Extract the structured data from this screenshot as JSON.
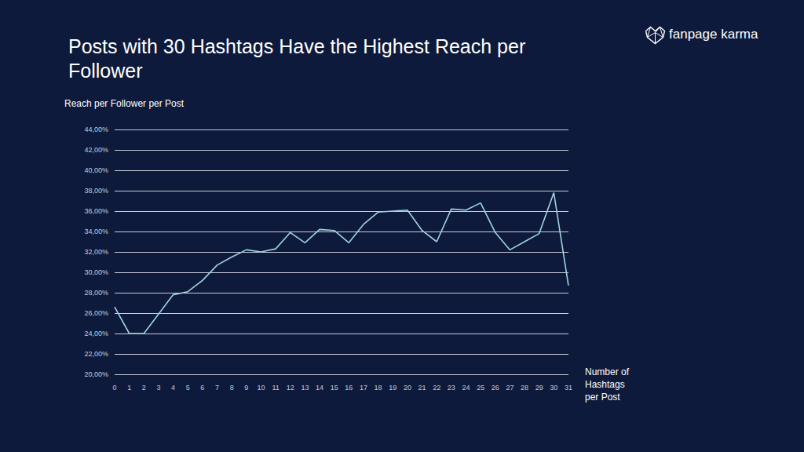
{
  "chart_data": {
    "type": "line",
    "title": "Posts with 30 Hashtags Have the Highest Reach per Follower",
    "brand": "fanpage karma",
    "y_label": "Reach per Follower per Post",
    "x_label": "Number of Hashtags per Post",
    "categories": [
      "0",
      "1",
      "2",
      "3",
      "4",
      "5",
      "6",
      "7",
      "8",
      "9",
      "10",
      "11",
      "12",
      "13",
      "14",
      "15",
      "16",
      "17",
      "18",
      "19",
      "20",
      "21",
      "22",
      "23",
      "24",
      "25",
      "26",
      "27",
      "28",
      "29",
      "30",
      "31"
    ],
    "values": [
      26.6,
      24.0,
      24.0,
      25.9,
      27.8,
      28.1,
      29.2,
      30.7,
      31.5,
      32.2,
      32.0,
      32.3,
      33.9,
      32.9,
      34.2,
      34.1,
      32.9,
      34.7,
      35.9,
      36.0,
      36.1,
      34.1,
      33.0,
      36.2,
      36.1,
      36.8,
      33.9,
      32.2,
      33.0,
      33.8,
      37.8,
      28.7
    ],
    "color": "#9fd3dc",
    "ylim": [
      20,
      44
    ],
    "yticks": [
      {
        "value": 20,
        "label": "20,00%"
      },
      {
        "value": 22,
        "label": "22,00%"
      },
      {
        "value": 24,
        "label": "24,00%"
      },
      {
        "value": 26,
        "label": "26,00%"
      },
      {
        "value": 28,
        "label": "28,00%"
      },
      {
        "value": 30,
        "label": "30,00%"
      },
      {
        "value": 32,
        "label": "32,00%"
      },
      {
        "value": 34,
        "label": "34,00%"
      },
      {
        "value": 36,
        "label": "36,00%"
      },
      {
        "value": 38,
        "label": "38,00%"
      },
      {
        "value": 40,
        "label": "40,00%"
      },
      {
        "value": 42,
        "label": "42,00%"
      },
      {
        "value": 44,
        "label": "44,00%"
      }
    ],
    "grid": true
  }
}
